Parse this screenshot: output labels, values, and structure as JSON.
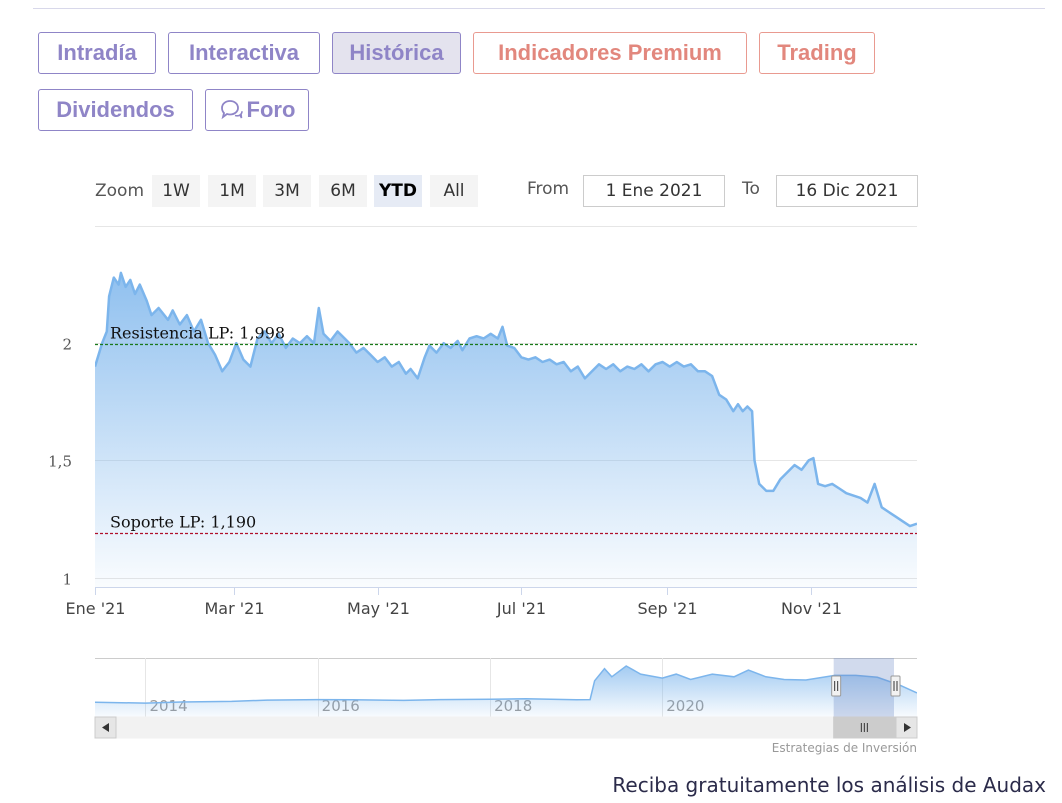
{
  "tabs": [
    {
      "label": "Intradía",
      "style": "normal"
    },
    {
      "label": "Interactiva",
      "style": "normal"
    },
    {
      "label": "Histórica",
      "style": "active"
    },
    {
      "label": "Indicadores Premium",
      "style": "premium"
    },
    {
      "label": "Trading",
      "style": "premium"
    },
    {
      "label": "Dividendos",
      "style": "normal"
    },
    {
      "label": "Foro",
      "style": "normal",
      "icon": "chat-bubbles-icon"
    }
  ],
  "range_selector": {
    "zoom_label": "Zoom",
    "buttons": [
      "1W",
      "1M",
      "3M",
      "6M",
      "YTD",
      "All"
    ],
    "selected": "YTD",
    "from_label": "From",
    "from_value": "1 Ene 2021",
    "to_label": "To",
    "to_value": "16 Dic 2021"
  },
  "chart_data": {
    "type": "area",
    "title": "",
    "xlabel": "",
    "ylabel": "",
    "y_ticks": [
      {
        "value": 1,
        "label": "1"
      },
      {
        "value": 1.5,
        "label": "1,5"
      },
      {
        "value": 2,
        "label": "2"
      }
    ],
    "ylim": [
      0.96,
      2.5
    ],
    "x_range": [
      "2021-01-01",
      "2021-12-16"
    ],
    "x_ticks": [
      {
        "date": "2021-01-01",
        "label": "Ene '21"
      },
      {
        "date": "2021-03-01",
        "label": "Mar '21"
      },
      {
        "date": "2021-05-01",
        "label": "May '21"
      },
      {
        "date": "2021-07-01",
        "label": "Jul '21"
      },
      {
        "date": "2021-09-01",
        "label": "Sep '21"
      },
      {
        "date": "2021-11-01",
        "label": "Nov '21"
      }
    ],
    "series": [
      {
        "color": "#7cb5ec",
        "points": [
          [
            "2021-01-01",
            1.9
          ],
          [
            "2021-01-04",
            2.0
          ],
          [
            "2021-01-06",
            2.05
          ],
          [
            "2021-01-07",
            2.2
          ],
          [
            "2021-01-09",
            2.28
          ],
          [
            "2021-01-11",
            2.25
          ],
          [
            "2021-01-12",
            2.3
          ],
          [
            "2021-01-14",
            2.24
          ],
          [
            "2021-01-16",
            2.27
          ],
          [
            "2021-01-18",
            2.21
          ],
          [
            "2021-01-20",
            2.25
          ],
          [
            "2021-01-23",
            2.18
          ],
          [
            "2021-01-25",
            2.12
          ],
          [
            "2021-01-28",
            2.15
          ],
          [
            "2021-02-01",
            2.1
          ],
          [
            "2021-02-03",
            2.14
          ],
          [
            "2021-02-06",
            2.08
          ],
          [
            "2021-02-09",
            2.12
          ],
          [
            "2021-02-12",
            2.05
          ],
          [
            "2021-02-15",
            2.1
          ],
          [
            "2021-02-18",
            2.0
          ],
          [
            "2021-02-21",
            1.95
          ],
          [
            "2021-02-24",
            1.88
          ],
          [
            "2021-02-27",
            1.92
          ],
          [
            "2021-03-02",
            2.0
          ],
          [
            "2021-03-05",
            1.93
          ],
          [
            "2021-03-08",
            1.9
          ],
          [
            "2021-03-11",
            2.02
          ],
          [
            "2021-03-14",
            2.05
          ],
          [
            "2021-03-17",
            2.0
          ],
          [
            "2021-03-20",
            2.04
          ],
          [
            "2021-03-23",
            1.98
          ],
          [
            "2021-03-26",
            2.02
          ],
          [
            "2021-03-29",
            2.0
          ],
          [
            "2021-04-01",
            2.03
          ],
          [
            "2021-04-04",
            2.0
          ],
          [
            "2021-04-06",
            2.15
          ],
          [
            "2021-04-08",
            2.04
          ],
          [
            "2021-04-11",
            2.01
          ],
          [
            "2021-04-14",
            2.05
          ],
          [
            "2021-04-17",
            2.02
          ],
          [
            "2021-04-19",
            2.0
          ],
          [
            "2021-04-22",
            1.96
          ],
          [
            "2021-04-25",
            1.98
          ],
          [
            "2021-04-28",
            1.95
          ],
          [
            "2021-05-01",
            1.92
          ],
          [
            "2021-05-04",
            1.94
          ],
          [
            "2021-05-07",
            1.9
          ],
          [
            "2021-05-10",
            1.92
          ],
          [
            "2021-05-13",
            1.87
          ],
          [
            "2021-05-15",
            1.89
          ],
          [
            "2021-05-18",
            1.85
          ],
          [
            "2021-05-21",
            1.94
          ],
          [
            "2021-05-23",
            1.99
          ],
          [
            "2021-05-26",
            1.96
          ],
          [
            "2021-05-29",
            2.0
          ],
          [
            "2021-06-01",
            1.98
          ],
          [
            "2021-06-04",
            2.01
          ],
          [
            "2021-06-06",
            1.97
          ],
          [
            "2021-06-09",
            2.02
          ],
          [
            "2021-06-12",
            2.03
          ],
          [
            "2021-06-15",
            2.02
          ],
          [
            "2021-06-18",
            2.04
          ],
          [
            "2021-06-21",
            2.02
          ],
          [
            "2021-06-23",
            2.07
          ],
          [
            "2021-06-25",
            1.99
          ],
          [
            "2021-06-28",
            1.98
          ],
          [
            "2021-07-01",
            1.94
          ],
          [
            "2021-07-04",
            1.93
          ],
          [
            "2021-07-07",
            1.94
          ],
          [
            "2021-07-10",
            1.92
          ],
          [
            "2021-07-13",
            1.93
          ],
          [
            "2021-07-16",
            1.91
          ],
          [
            "2021-07-19",
            1.92
          ],
          [
            "2021-07-22",
            1.88
          ],
          [
            "2021-07-25",
            1.9
          ],
          [
            "2021-07-28",
            1.85
          ],
          [
            "2021-07-31",
            1.88
          ],
          [
            "2021-08-03",
            1.91
          ],
          [
            "2021-08-06",
            1.89
          ],
          [
            "2021-08-09",
            1.91
          ],
          [
            "2021-08-12",
            1.88
          ],
          [
            "2021-08-15",
            1.9
          ],
          [
            "2021-08-18",
            1.89
          ],
          [
            "2021-08-21",
            1.91
          ],
          [
            "2021-08-24",
            1.88
          ],
          [
            "2021-08-27",
            1.91
          ],
          [
            "2021-08-30",
            1.92
          ],
          [
            "2021-09-02",
            1.9
          ],
          [
            "2021-09-05",
            1.92
          ],
          [
            "2021-09-08",
            1.9
          ],
          [
            "2021-09-11",
            1.91
          ],
          [
            "2021-09-14",
            1.88
          ],
          [
            "2021-09-17",
            1.88
          ],
          [
            "2021-09-20",
            1.86
          ],
          [
            "2021-09-23",
            1.78
          ],
          [
            "2021-09-26",
            1.76
          ],
          [
            "2021-09-29",
            1.71
          ],
          [
            "2021-10-01",
            1.74
          ],
          [
            "2021-10-03",
            1.71
          ],
          [
            "2021-10-05",
            1.73
          ],
          [
            "2021-10-07",
            1.71
          ],
          [
            "2021-10-08",
            1.5
          ],
          [
            "2021-10-10",
            1.4
          ],
          [
            "2021-10-13",
            1.37
          ],
          [
            "2021-10-16",
            1.37
          ],
          [
            "2021-10-19",
            1.42
          ],
          [
            "2021-10-22",
            1.45
          ],
          [
            "2021-10-25",
            1.48
          ],
          [
            "2021-10-28",
            1.46
          ],
          [
            "2021-10-31",
            1.5
          ],
          [
            "2021-11-02",
            1.51
          ],
          [
            "2021-11-04",
            1.4
          ],
          [
            "2021-11-07",
            1.39
          ],
          [
            "2021-11-10",
            1.4
          ],
          [
            "2021-11-13",
            1.38
          ],
          [
            "2021-11-16",
            1.36
          ],
          [
            "2021-11-19",
            1.35
          ],
          [
            "2021-11-22",
            1.34
          ],
          [
            "2021-11-25",
            1.32
          ],
          [
            "2021-11-28",
            1.4
          ],
          [
            "2021-12-01",
            1.3
          ],
          [
            "2021-12-04",
            1.28
          ],
          [
            "2021-12-07",
            1.26
          ],
          [
            "2021-12-10",
            1.24
          ],
          [
            "2021-12-13",
            1.22
          ],
          [
            "2021-12-16",
            1.23
          ]
        ]
      }
    ],
    "annotations": [
      {
        "label": "Resistencia LP: 1,998",
        "value": 1.998,
        "color": "#1a7a1a"
      },
      {
        "label": "Soporte LP: 1,190",
        "value": 1.19,
        "color": "#b0102a"
      }
    ],
    "navigator": {
      "x_labels": [
        "2014",
        "2016",
        "2018",
        "2020"
      ],
      "x_ticks": [
        "2013",
        "2015",
        "2017",
        "2019"
      ],
      "range": [
        "2012-06-01",
        "2021-12-16"
      ],
      "ylim": [
        0.4,
        2.6
      ],
      "points": [
        [
          "2012-06-01",
          0.95
        ],
        [
          "2013-01-01",
          0.92
        ],
        [
          "2013-06-01",
          0.96
        ],
        [
          "2014-01-01",
          0.98
        ],
        [
          "2014-06-01",
          1.03
        ],
        [
          "2015-01-01",
          1.05
        ],
        [
          "2015-06-01",
          1.04
        ],
        [
          "2016-01-01",
          1.02
        ],
        [
          "2016-06-01",
          1.05
        ],
        [
          "2017-01-01",
          1.06
        ],
        [
          "2017-06-01",
          1.08
        ],
        [
          "2018-01-01",
          1.04
        ],
        [
          "2018-03-01",
          1.05
        ],
        [
          "2018-03-20",
          1.75
        ],
        [
          "2018-05-01",
          2.2
        ],
        [
          "2018-06-01",
          1.9
        ],
        [
          "2018-08-01",
          2.3
        ],
        [
          "2018-10-01",
          2.0
        ],
        [
          "2019-01-01",
          1.85
        ],
        [
          "2019-03-01",
          2.0
        ],
        [
          "2019-05-01",
          1.8
        ],
        [
          "2019-08-01",
          2.0
        ],
        [
          "2019-11-01",
          1.9
        ],
        [
          "2020-01-01",
          2.15
        ],
        [
          "2020-03-15",
          1.9
        ],
        [
          "2020-06-01",
          1.8
        ],
        [
          "2020-09-01",
          1.78
        ],
        [
          "2021-01-01",
          1.95
        ],
        [
          "2021-04-01",
          1.95
        ],
        [
          "2021-07-01",
          1.88
        ],
        [
          "2021-10-01",
          1.6
        ],
        [
          "2021-12-16",
          1.3
        ]
      ],
      "selected": [
        "2021-01-01",
        "2021-12-16"
      ]
    },
    "credits": "Estrategias de Inversión"
  },
  "footer": "Reciba gratuitamente los análisis de Audax"
}
